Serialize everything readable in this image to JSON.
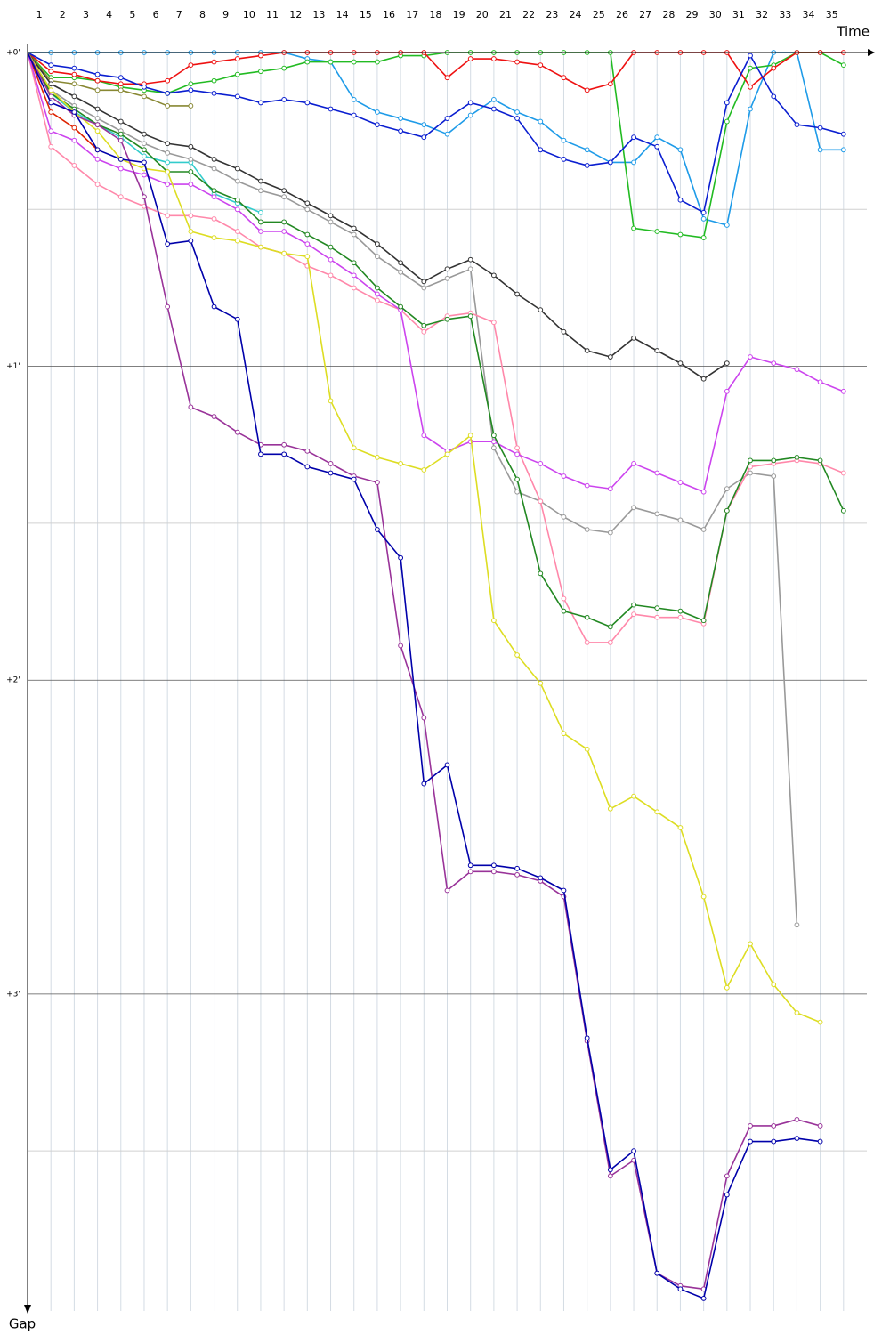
{
  "chart_data": {
    "type": "line",
    "x_label": "Time",
    "y_label": "Gap",
    "x": [
      0,
      1,
      2,
      3,
      4,
      5,
      6,
      7,
      8,
      9,
      10,
      11,
      12,
      13,
      14,
      15,
      16,
      17,
      18,
      19,
      20,
      21,
      22,
      23,
      24,
      25,
      26,
      27,
      28,
      29,
      30,
      31,
      32,
      33,
      34,
      35
    ],
    "xlim": [
      0,
      36
    ],
    "xticks": [
      1,
      2,
      3,
      4,
      5,
      6,
      7,
      8,
      9,
      10,
      11,
      12,
      13,
      14,
      15,
      16,
      17,
      18,
      19,
      20,
      21,
      22,
      23,
      24,
      25,
      26,
      27,
      28,
      29,
      30,
      31,
      32,
      33,
      34,
      35
    ],
    "ylim": [
      0,
      4.01
    ],
    "yticks": [
      {
        "value": 0,
        "label": "+0'"
      },
      {
        "value": 1,
        "label": "+1'"
      },
      {
        "value": 2,
        "label": "+2'"
      },
      {
        "value": 3,
        "label": "+3'"
      }
    ],
    "minor_yticks": [
      0.5,
      1.5,
      2.5,
      3.5
    ],
    "y_inverted": true,
    "grid": true,
    "series": [
      {
        "color": "#1e9be8",
        "values": [
          0,
          0,
          0,
          0,
          0,
          0,
          0,
          0,
          0,
          0,
          0,
          0,
          0.02,
          0.03,
          0.15,
          0.19,
          0.21,
          0.23,
          0.26,
          0.2,
          0.15,
          0.19,
          0.22,
          0.28,
          0.31,
          0.35,
          0.35,
          0.27,
          0.31,
          0.53,
          0.55,
          0.18,
          0,
          0,
          0.31,
          0.31
        ]
      },
      {
        "color": "#22bb22",
        "values": [
          0,
          0.08,
          0.08,
          0.09,
          0.11,
          0.12,
          0.13,
          0.1,
          0.09,
          0.07,
          0.06,
          0.05,
          0.03,
          0.03,
          0.03,
          0.03,
          0.01,
          0.01,
          0,
          0,
          0,
          0,
          0,
          0,
          0,
          0,
          0.56,
          0.57,
          0.58,
          0.59,
          0.22,
          0.05,
          0.04,
          0,
          0,
          0.04
        ]
      },
      {
        "color": "#ee1111",
        "values": [
          0,
          0.06,
          0.07,
          0.09,
          0.1,
          0.1,
          0.09,
          0.04,
          0.03,
          0.02,
          0.01,
          0,
          0,
          0,
          0,
          0,
          0,
          0,
          0.08,
          0.02,
          0.02,
          0.03,
          0.04,
          0.08,
          0.12,
          0.1,
          0,
          0,
          0,
          0,
          0,
          0.11,
          0.05,
          0,
          0,
          0
        ]
      },
      {
        "color": "#0a1ed0",
        "values": [
          0,
          0.04,
          0.05,
          0.07,
          0.08,
          0.11,
          0.13,
          0.12,
          0.13,
          0.14,
          0.16,
          0.15,
          0.16,
          0.18,
          0.2,
          0.23,
          0.25,
          0.27,
          0.21,
          0.16,
          0.18,
          0.21,
          0.31,
          0.34,
          0.36,
          0.35,
          0.27,
          0.3,
          0.47,
          0.51,
          0.16,
          0.01,
          0.14,
          0.23,
          0.24,
          0.26
        ]
      },
      {
        "color": "#888833",
        "values": [
          0,
          0.09,
          0.1,
          0.12,
          0.12,
          0.14,
          0.17,
          0.17,
          null,
          null,
          null,
          null,
          null,
          null,
          null,
          null,
          null,
          null,
          null,
          null,
          null,
          null,
          null,
          null,
          null,
          null,
          null,
          null,
          null,
          null,
          null,
          null,
          null,
          null,
          null,
          null
        ]
      },
      {
        "color": "#33cccc",
        "values": [
          0,
          0.13,
          0.19,
          0.23,
          0.27,
          0.33,
          0.35,
          0.35,
          0.45,
          0.48,
          0.51,
          null,
          null,
          null,
          null,
          null,
          null,
          null,
          null,
          null,
          null,
          null,
          null,
          null,
          null,
          null,
          null,
          null,
          null,
          null,
          null,
          null,
          null,
          null,
          null,
          null
        ]
      },
      {
        "color": "#dd2200",
        "values": [
          0,
          0.19,
          0.24,
          0.31,
          null,
          null,
          null,
          null,
          null,
          null,
          null,
          null,
          null,
          null,
          null,
          null,
          null,
          null,
          null,
          null,
          null,
          null,
          null,
          null,
          null,
          null,
          null,
          null,
          null,
          null,
          null,
          null,
          null,
          null,
          null,
          null
        ]
      },
      {
        "color": "#333333",
        "values": [
          0,
          0.1,
          0.14,
          0.18,
          0.22,
          0.26,
          0.29,
          0.3,
          0.34,
          0.37,
          0.41,
          0.44,
          0.48,
          0.52,
          0.56,
          0.61,
          0.67,
          0.73,
          0.69,
          0.66,
          0.71,
          0.77,
          0.82,
          0.89,
          0.95,
          0.97,
          0.91,
          0.95,
          0.99,
          1.04,
          0.99,
          null,
          null,
          null,
          null,
          null
        ]
      },
      {
        "color": "#999999",
        "values": [
          0,
          0.12,
          0.17,
          0.21,
          0.25,
          0.29,
          0.32,
          0.34,
          0.37,
          0.41,
          0.44,
          0.46,
          0.5,
          0.54,
          0.58,
          0.65,
          0.7,
          0.75,
          0.72,
          0.69,
          1.26,
          1.4,
          1.43,
          1.48,
          1.52,
          1.53,
          1.45,
          1.47,
          1.49,
          1.52,
          1.39,
          1.34,
          1.35,
          2.78,
          null,
          null
        ]
      },
      {
        "color": "#ff88aa",
        "values": [
          0,
          0.3,
          0.36,
          0.42,
          0.46,
          0.49,
          0.52,
          0.52,
          0.53,
          0.57,
          0.62,
          0.64,
          0.68,
          0.71,
          0.75,
          0.79,
          0.82,
          0.89,
          0.84,
          0.83,
          0.86,
          1.26,
          1.43,
          1.74,
          1.88,
          1.88,
          1.79,
          1.8,
          1.8,
          1.82,
          1.46,
          1.32,
          1.31,
          1.3,
          1.31,
          1.34
        ]
      },
      {
        "color": "#cc44ee",
        "values": [
          0,
          0.25,
          0.28,
          0.34,
          0.37,
          0.39,
          0.42,
          0.42,
          0.46,
          0.5,
          0.57,
          0.57,
          0.61,
          0.66,
          0.71,
          0.77,
          0.82,
          1.22,
          1.27,
          1.24,
          1.24,
          1.28,
          1.31,
          1.35,
          1.38,
          1.39,
          1.31,
          1.34,
          1.37,
          1.4,
          1.08,
          0.97,
          0.99,
          1.01,
          1.05,
          1.08
        ]
      },
      {
        "color": "#228822",
        "values": [
          0,
          0.13,
          0.18,
          0.23,
          0.26,
          0.31,
          0.38,
          0.38,
          0.44,
          0.47,
          0.54,
          0.54,
          0.58,
          0.62,
          0.67,
          0.75,
          0.81,
          0.87,
          0.85,
          0.84,
          1.22,
          1.36,
          1.66,
          1.78,
          1.8,
          1.83,
          1.76,
          1.77,
          1.78,
          1.81,
          1.46,
          1.3,
          1.3,
          1.29,
          1.3,
          1.46
        ]
      },
      {
        "color": "#dddd22",
        "values": [
          0,
          0.12,
          0.19,
          0.25,
          0.34,
          0.37,
          0.38,
          0.57,
          0.59,
          0.6,
          0.62,
          0.64,
          0.65,
          1.11,
          1.26,
          1.29,
          1.31,
          1.33,
          1.28,
          1.22,
          1.81,
          1.92,
          2.01,
          2.17,
          2.22,
          2.41,
          2.37,
          2.42,
          2.47,
          2.69,
          2.98,
          2.84,
          2.97,
          3.06,
          3.09,
          null
        ]
      },
      {
        "color": "#993399",
        "values": [
          0,
          0.14,
          0.2,
          0.23,
          0.28,
          0.46,
          0.81,
          1.13,
          1.16,
          1.21,
          1.25,
          1.25,
          1.27,
          1.31,
          1.35,
          1.37,
          1.89,
          2.12,
          2.67,
          2.61,
          2.61,
          2.62,
          2.64,
          2.69,
          3.15,
          3.58,
          3.53,
          3.89,
          3.93,
          3.94,
          3.58,
          3.42,
          3.42,
          3.4,
          3.42,
          null
        ]
      },
      {
        "color": "#0000aa",
        "values": [
          0,
          0.16,
          0.19,
          0.31,
          0.34,
          0.35,
          0.61,
          0.6,
          0.81,
          0.85,
          1.28,
          1.28,
          1.32,
          1.34,
          1.36,
          1.52,
          1.61,
          2.33,
          2.27,
          2.59,
          2.59,
          2.6,
          2.63,
          2.67,
          3.14,
          3.56,
          3.5,
          3.89,
          3.94,
          3.97,
          3.64,
          3.47,
          3.47,
          3.46,
          3.47,
          null
        ]
      }
    ]
  }
}
